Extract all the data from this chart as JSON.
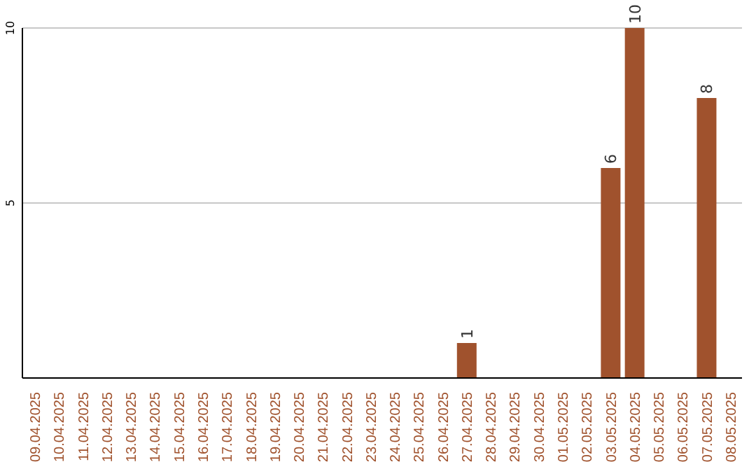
{
  "chart_data": {
    "type": "bar",
    "categories": [
      "09.04.2025",
      "10.04.2025",
      "11.04.2025",
      "12.04.2025",
      "13.04.2025",
      "14.04.2025",
      "15.04.2025",
      "16.04.2025",
      "17.04.2025",
      "18.04.2025",
      "19.04.2025",
      "20.04.2025",
      "21.04.2025",
      "22.04.2025",
      "23.04.2025",
      "24.04.2025",
      "25.04.2025",
      "26.04.2025",
      "27.04.2025",
      "28.04.2025",
      "29.04.2025",
      "30.04.2025",
      "01.05.2025",
      "02.05.2025",
      "03.05.2025",
      "04.05.2025",
      "05.05.2025",
      "06.05.2025",
      "07.05.2025",
      "08.05.2025"
    ],
    "values": [
      0,
      0,
      0,
      0,
      0,
      0,
      0,
      0,
      0,
      0,
      0,
      0,
      0,
      0,
      0,
      0,
      0,
      0,
      1,
      0,
      0,
      0,
      0,
      0,
      6,
      10,
      0,
      0,
      8,
      0
    ],
    "value_labels": [
      null,
      null,
      null,
      null,
      null,
      null,
      null,
      null,
      null,
      null,
      null,
      null,
      null,
      null,
      null,
      null,
      null,
      null,
      "1",
      null,
      null,
      null,
      null,
      null,
      "6",
      "10",
      null,
      null,
      "8",
      null
    ],
    "color": "#a0522d",
    "ylim": [
      0,
      10
    ],
    "yticks": [
      5,
      10
    ],
    "grid": "y"
  }
}
